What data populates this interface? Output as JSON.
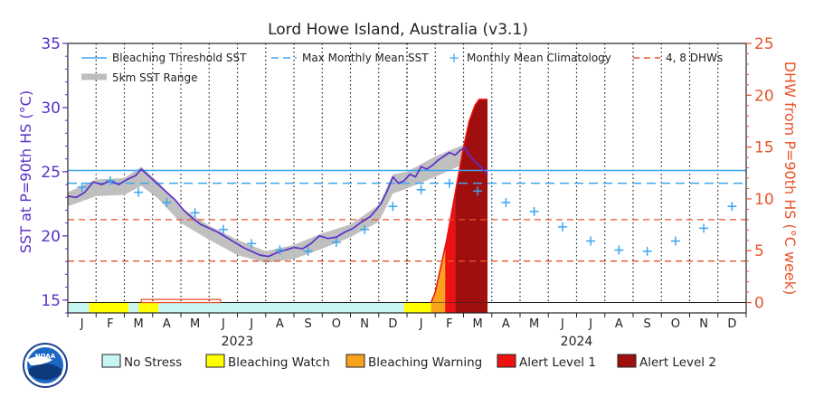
{
  "chart_data": {
    "type": "line",
    "title": "Lord Howe Island, Australia (v3.1)",
    "ylabel_left": "SST at P=90th HS (°C)",
    "ylabel_right": "DHW from P=90th HS (°C week)",
    "ylim_left": [
      14,
      35
    ],
    "yticks_left": [
      15,
      20,
      25,
      30,
      35
    ],
    "ylim_right": [
      -1,
      25
    ],
    "yticks_right": [
      0,
      5,
      10,
      15,
      20,
      25
    ],
    "x_start_month": "2023-01",
    "months": [
      "J",
      "F",
      "M",
      "A",
      "M",
      "J",
      "J",
      "A",
      "S",
      "O",
      "N",
      "D",
      "J",
      "F",
      "M",
      "A",
      "M",
      "J",
      "J",
      "A",
      "S",
      "O",
      "N",
      "D"
    ],
    "years": [
      "2023",
      "2024"
    ],
    "legend_top": {
      "bleaching_threshold": "Bleaching Threshold SST",
      "mmm": "Max Monthly Mean SST",
      "climatology": "Monthly Mean Climatology",
      "dhw_lines": "4, 8 DHWs",
      "sst_range": "5km SST Range"
    },
    "bleaching_threshold_sst": 25.1,
    "max_monthly_mean_sst": 24.1,
    "dhw_thresholds": [
      4,
      8
    ],
    "climatology": [
      {
        "m": 0.5,
        "v": 23.8
      },
      {
        "m": 1.5,
        "v": 24.3
      },
      {
        "m": 2.5,
        "v": 23.4
      },
      {
        "m": 3.5,
        "v": 22.6
      },
      {
        "m": 4.5,
        "v": 21.8
      },
      {
        "m": 5.5,
        "v": 20.5
      },
      {
        "m": 6.5,
        "v": 19.4
      },
      {
        "m": 7.5,
        "v": 18.9
      },
      {
        "m": 8.5,
        "v": 18.8
      },
      {
        "m": 9.5,
        "v": 19.5
      },
      {
        "m": 10.5,
        "v": 20.5
      },
      {
        "m": 11.5,
        "v": 22.3
      },
      {
        "m": 12.5,
        "v": 23.6
      },
      {
        "m": 13.5,
        "v": 24.1
      },
      {
        "m": 14.5,
        "v": 23.5
      },
      {
        "m": 15.5,
        "v": 22.6
      },
      {
        "m": 16.5,
        "v": 21.9
      },
      {
        "m": 17.5,
        "v": 20.7
      },
      {
        "m": 18.5,
        "v": 19.6
      },
      {
        "m": 19.5,
        "v": 18.9
      },
      {
        "m": 20.5,
        "v": 18.8
      },
      {
        "m": 21.5,
        "v": 19.6
      },
      {
        "m": 22.5,
        "v": 20.6
      },
      {
        "m": 23.5,
        "v": 22.3
      }
    ],
    "sst": [
      {
        "m": 0.0,
        "v": 23.1
      },
      {
        "m": 0.3,
        "v": 23.0
      },
      {
        "m": 0.6,
        "v": 23.4
      },
      {
        "m": 0.9,
        "v": 24.2
      },
      {
        "m": 1.2,
        "v": 24.0
      },
      {
        "m": 1.5,
        "v": 24.3
      },
      {
        "m": 1.8,
        "v": 24.0
      },
      {
        "m": 2.1,
        "v": 24.4
      },
      {
        "m": 2.4,
        "v": 24.7
      },
      {
        "m": 2.6,
        "v": 25.2
      },
      {
        "m": 2.9,
        "v": 24.6
      },
      {
        "m": 3.2,
        "v": 24.0
      },
      {
        "m": 3.5,
        "v": 23.4
      },
      {
        "m": 3.8,
        "v": 22.8
      },
      {
        "m": 4.1,
        "v": 22.0
      },
      {
        "m": 4.4,
        "v": 21.4
      },
      {
        "m": 4.7,
        "v": 20.9
      },
      {
        "m": 5.0,
        "v": 20.6
      },
      {
        "m": 5.3,
        "v": 20.3
      },
      {
        "m": 5.6,
        "v": 19.9
      },
      {
        "m": 5.9,
        "v": 19.5
      },
      {
        "m": 6.2,
        "v": 19.1
      },
      {
        "m": 6.5,
        "v": 18.8
      },
      {
        "m": 6.8,
        "v": 18.5
      },
      {
        "m": 7.1,
        "v": 18.4
      },
      {
        "m": 7.4,
        "v": 18.7
      },
      {
        "m": 7.7,
        "v": 18.9
      },
      {
        "m": 8.0,
        "v": 19.1
      },
      {
        "m": 8.3,
        "v": 19.0
      },
      {
        "m": 8.6,
        "v": 19.4
      },
      {
        "m": 8.9,
        "v": 20.0
      },
      {
        "m": 9.2,
        "v": 19.8
      },
      {
        "m": 9.5,
        "v": 19.9
      },
      {
        "m": 9.8,
        "v": 20.3
      },
      {
        "m": 10.1,
        "v": 20.6
      },
      {
        "m": 10.4,
        "v": 21.1
      },
      {
        "m": 10.7,
        "v": 21.5
      },
      {
        "m": 10.9,
        "v": 22.0
      },
      {
        "m": 11.1,
        "v": 22.6
      },
      {
        "m": 11.3,
        "v": 23.5
      },
      {
        "m": 11.5,
        "v": 24.6
      },
      {
        "m": 11.7,
        "v": 24.1
      },
      {
        "m": 11.9,
        "v": 24.3
      },
      {
        "m": 12.1,
        "v": 24.8
      },
      {
        "m": 12.3,
        "v": 24.6
      },
      {
        "m": 12.5,
        "v": 25.4
      },
      {
        "m": 12.7,
        "v": 25.2
      },
      {
        "m": 12.9,
        "v": 25.5
      },
      {
        "m": 13.1,
        "v": 25.9
      },
      {
        "m": 13.3,
        "v": 26.2
      },
      {
        "m": 13.5,
        "v": 26.5
      },
      {
        "m": 13.7,
        "v": 26.3
      },
      {
        "m": 13.9,
        "v": 26.7
      },
      {
        "m": 14.05,
        "v": 26.9
      },
      {
        "m": 14.2,
        "v": 26.3
      },
      {
        "m": 14.4,
        "v": 25.8
      },
      {
        "m": 14.6,
        "v": 25.4
      },
      {
        "m": 14.75,
        "v": 25.0
      },
      {
        "m": 14.85,
        "v": 24.8
      }
    ],
    "sst_range": [
      {
        "m": 0.0,
        "lo": 22.3,
        "hi": 23.4
      },
      {
        "m": 1.0,
        "lo": 23.1,
        "hi": 24.4
      },
      {
        "m": 2.0,
        "lo": 23.2,
        "hi": 24.5
      },
      {
        "m": 2.6,
        "lo": 23.9,
        "hi": 25.4
      },
      {
        "m": 3.2,
        "lo": 22.9,
        "hi": 24.2
      },
      {
        "m": 4.0,
        "lo": 21.0,
        "hi": 22.2
      },
      {
        "m": 5.0,
        "lo": 19.7,
        "hi": 20.8
      },
      {
        "m": 6.0,
        "lo": 18.5,
        "hi": 19.7
      },
      {
        "m": 7.0,
        "lo": 17.9,
        "hi": 18.8
      },
      {
        "m": 8.0,
        "lo": 18.2,
        "hi": 19.3
      },
      {
        "m": 9.0,
        "lo": 19.0,
        "hi": 20.2
      },
      {
        "m": 10.0,
        "lo": 19.9,
        "hi": 20.9
      },
      {
        "m": 11.0,
        "lo": 21.1,
        "hi": 22.4
      },
      {
        "m": 11.5,
        "lo": 23.3,
        "hi": 24.8
      },
      {
        "m": 12.0,
        "lo": 23.7,
        "hi": 25.0
      },
      {
        "m": 13.0,
        "lo": 24.6,
        "hi": 26.2
      },
      {
        "m": 14.0,
        "lo": 25.6,
        "hi": 27.1
      },
      {
        "m": 14.85,
        "lo": 23.6,
        "hi": 25.1
      }
    ],
    "dhw": [
      {
        "m": 12.85,
        "v": 0.0
      },
      {
        "m": 13.0,
        "v": 1.0
      },
      {
        "m": 13.2,
        "v": 3.5
      },
      {
        "m": 13.4,
        "v": 6.0
      },
      {
        "m": 13.6,
        "v": 9.0
      },
      {
        "m": 13.8,
        "v": 12.0
      },
      {
        "m": 14.0,
        "v": 15.0
      },
      {
        "m": 14.2,
        "v": 17.5
      },
      {
        "m": 14.4,
        "v": 19.0
      },
      {
        "m": 14.55,
        "v": 19.6
      },
      {
        "m": 14.85,
        "v": 19.6
      }
    ],
    "stress_levels": [
      {
        "key": "no_stress",
        "label": "No Stress",
        "color": "#c6f5f4"
      },
      {
        "key": "watch",
        "label": "Bleaching Watch",
        "color": "#ffff00"
      },
      {
        "key": "warning",
        "label": "Bleaching Warning",
        "color": "#f9a21c"
      },
      {
        "key": "alert1",
        "label": "Alert Level 1",
        "color": "#ee1111"
      },
      {
        "key": "alert2",
        "label": "Alert Level 2",
        "color": "#a00e0e"
      }
    ],
    "stress_bar": [
      {
        "from": 0.0,
        "to": 0.75,
        "level": "no_stress"
      },
      {
        "from": 0.75,
        "to": 2.15,
        "level": "watch"
      },
      {
        "from": 2.15,
        "to": 2.5,
        "level": "no_stress"
      },
      {
        "from": 2.5,
        "to": 3.2,
        "level": "watch"
      },
      {
        "from": 3.2,
        "to": 11.9,
        "level": "no_stress"
      },
      {
        "from": 11.9,
        "to": 12.85,
        "level": "watch"
      },
      {
        "from": 12.85,
        "to": 13.35,
        "level": "warning"
      },
      {
        "from": 13.35,
        "to": 13.7,
        "level": "alert1"
      },
      {
        "from": 13.7,
        "to": 14.85,
        "level": "alert2"
      }
    ],
    "watch_outline": {
      "from": 2.6,
      "to": 5.4,
      "dhw": 0.3
    },
    "colors": {
      "sst": "#5b2fc9",
      "range": "#bdbdbd",
      "threshold": "#3aa6ee",
      "mmm": "#3aa6ee",
      "climatology": "#3aa6ee",
      "dhw_lines": "#e8542a",
      "alert1": "#ee1111",
      "alert2": "#a00e0e",
      "warning": "#f9a21c"
    }
  }
}
